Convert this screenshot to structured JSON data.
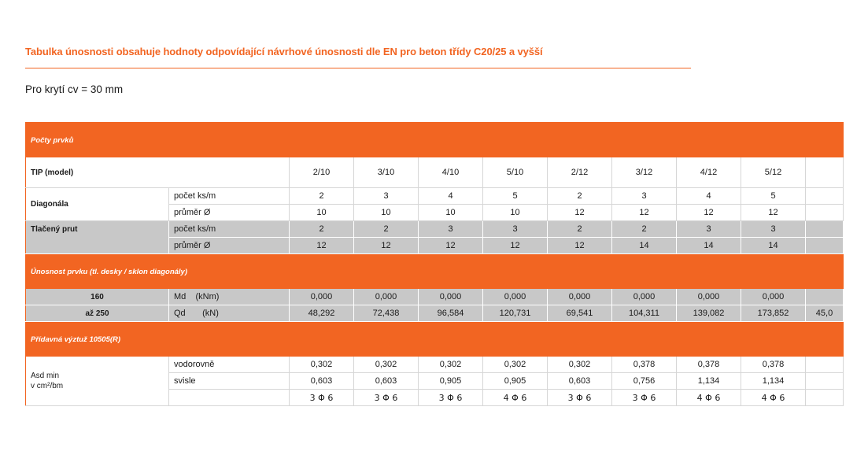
{
  "heading": "Tabulka únosnosti obsahuje hodnoty odpovídající návrhové únosnosti dle EN pro beton třídy C20/25 a vyšší",
  "subtitle": "Pro krytí cv = 30 mm",
  "table": {
    "section1": "Počty prvků",
    "model_label": "TIP (model)",
    "models": [
      "2/10",
      "3/10",
      "4/10",
      "5/10",
      "2/12",
      "3/12",
      "4/12",
      "5/12",
      ""
    ],
    "diagonala": {
      "label": "Diagonála",
      "count_label": "počet ks/m",
      "count": [
        "2",
        "3",
        "4",
        "5",
        "2",
        "3",
        "4",
        "5",
        ""
      ],
      "dia_label": "průměr Ø",
      "dia": [
        "10",
        "10",
        "10",
        "10",
        "12",
        "12",
        "12",
        "12",
        ""
      ]
    },
    "tlaceny": {
      "label": "Tlačený prut",
      "count_label": "počet  ks/m",
      "count": [
        "2",
        "2",
        "3",
        "3",
        "2",
        "2",
        "3",
        "3",
        ""
      ],
      "dia_label": "průměr Ø",
      "dia": [
        "12",
        "12",
        "12",
        "12",
        "12",
        "14",
        "14",
        "14",
        ""
      ]
    },
    "section2": "Únosnost prvku (tl. desky / sklon diagonály)",
    "capacity": {
      "row1_label": "160",
      "row1_unit_a": "Md",
      "row1_unit_b": "(kNm)",
      "row1": [
        "0,000",
        "0,000",
        "0,000",
        "0,000",
        "0,000",
        "0,000",
        "0,000",
        "0,000",
        ""
      ],
      "row2_label": "až 250",
      "row2_unit_a": "Qd",
      "row2_unit_b": "(kN)",
      "row2": [
        "48,292",
        "72,438",
        "96,584",
        "120,731",
        "69,541",
        "104,311",
        "139,082",
        "173,852",
        "45,0"
      ]
    },
    "section3": "Přídavná výztuž 10505(R)",
    "reinf": {
      "label_line1": "Asd min",
      "label_line2": "v cm²/bm",
      "horiz_label": "vodorovně",
      "horiz": [
        "0,302",
        "0,302",
        "0,302",
        "0,302",
        "0,302",
        "0,378",
        "0,378",
        "0,378",
        ""
      ],
      "vert_label": "svisle",
      "vert": [
        "0,603",
        "0,603",
        "0,905",
        "0,905",
        "0,603",
        "0,756",
        "1,134",
        "1,134",
        ""
      ],
      "bars": [
        "3 Φ 6",
        "3 Φ 6",
        "3 Φ 6",
        "4 Φ 6",
        "3 Φ 6",
        "3 Φ 6",
        "4 Φ 6",
        "4 Φ 6",
        ""
      ]
    }
  },
  "colors": {
    "accent": "#f26522",
    "gray_row": "#c8c8c8"
  }
}
